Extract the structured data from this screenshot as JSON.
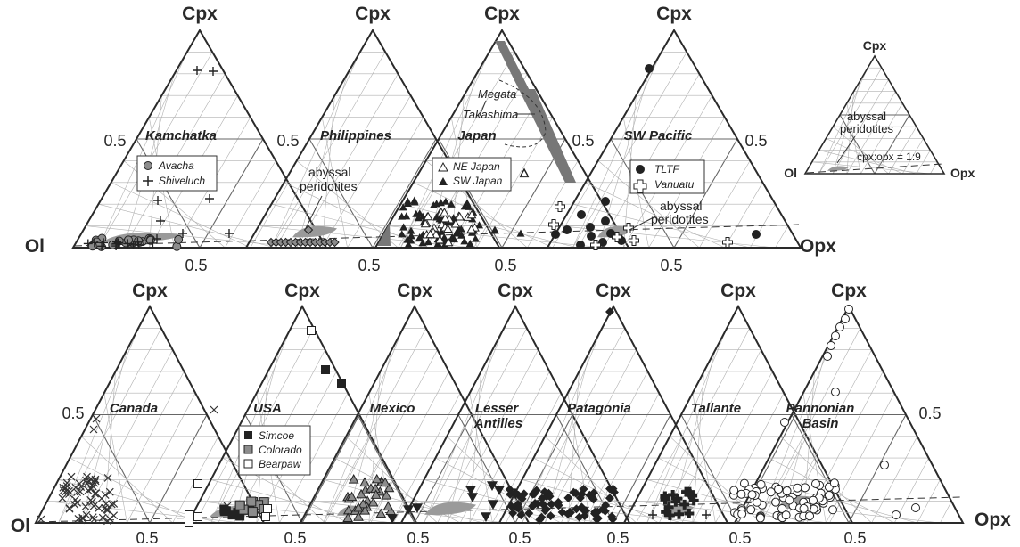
{
  "axes": {
    "apex": "Cpx",
    "left": "Ol",
    "right": "Opx",
    "half": "0.5"
  },
  "top_row": {
    "panels": [
      {
        "region": "Kamchatka",
        "legend": [
          "Avacha",
          "Shiveluch"
        ]
      },
      {
        "region": "Philippines",
        "annotation": "abyssal peridotites"
      },
      {
        "region": "Japan",
        "legend": [
          "NE Japan",
          "SW Japan"
        ],
        "labels": [
          "Megata",
          "Takashima"
        ]
      },
      {
        "region": "SW Pacific",
        "legend": [
          "TLTF",
          "Vanuatu"
        ],
        "annotation": "abyssal peridotites"
      }
    ]
  },
  "inset": {
    "annotation": "abyssal peridotites",
    "ratio_label": "cpx:opx = 1:9"
  },
  "bottom_row": {
    "panels": [
      {
        "region": "Canada"
      },
      {
        "region": "USA",
        "legend": [
          "Simcoe",
          "Colorado",
          "Bearpaw"
        ]
      },
      {
        "region": "Mexico"
      },
      {
        "region": "Lesser Antilles"
      },
      {
        "region": "Patagonia"
      },
      {
        "region": "Tallante"
      },
      {
        "region": "Pannonian Basin"
      }
    ]
  },
  "colors": {
    "line": "#2a2a2a",
    "grid": "#b0b0b0",
    "field": "#9a9a9a",
    "dark_field": "#777777",
    "marker_gray": "#8c8c8c"
  }
}
